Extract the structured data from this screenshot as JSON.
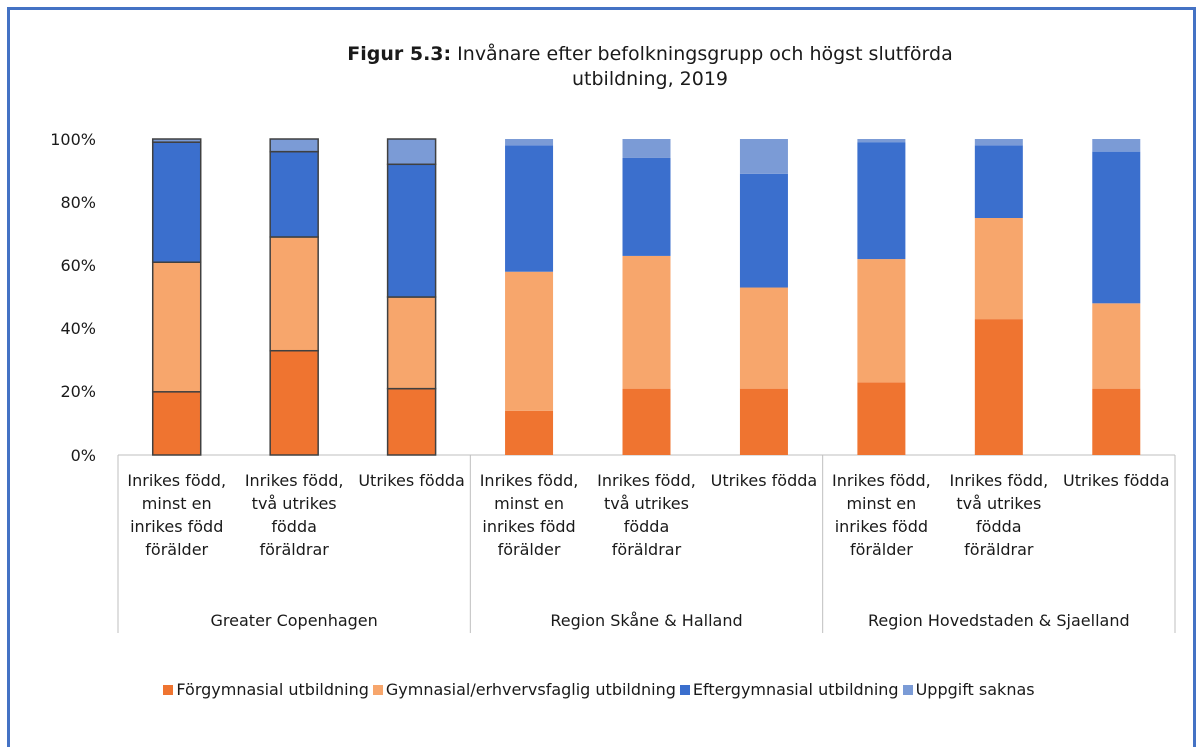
{
  "chart_data": {
    "type": "stacked_bar",
    "title_prefix": "Figur 5.3:",
    "title": "Invånare efter befolkningsgrupp och högst slutförda utbildning, 2019",
    "groups": [
      {
        "name": "Greater Copenhagen",
        "categories": [
          "Inrikes född, minst en inrikes född förälder",
          "Inrikes född, två utrikes födda föräldrar",
          "Utrikes födda"
        ]
      },
      {
        "name": "Region Skåne & Halland",
        "categories": [
          "Inrikes född, minst en inrikes född förälder",
          "Inrikes född, två utrikes födda föräldrar",
          "Utrikes födda"
        ]
      },
      {
        "name": "Region Hovedstaden & Sjaelland",
        "categories": [
          "Inrikes född, minst en inrikes född förälder",
          "Inrikes född, två utrikes födda föräldrar",
          "Utrikes födda"
        ]
      }
    ],
    "series": [
      {
        "name": "Förgymnasial utbildning",
        "color": "#ef7430",
        "values": [
          20,
          33,
          21,
          14,
          21,
          21,
          23,
          43,
          21
        ]
      },
      {
        "name": "Gymnasial/erhvervsfaglig utbildning",
        "color": "#f7a66c",
        "values": [
          41,
          36,
          29,
          44,
          42,
          32,
          39,
          32,
          27
        ]
      },
      {
        "name": "Eftergymnasial utbildning",
        "color": "#3b6fcd",
        "values": [
          38,
          27,
          42,
          40,
          31,
          36,
          37,
          23,
          48
        ]
      },
      {
        "name": "Uppgift saknas",
        "color": "#7b9bd6",
        "values": [
          1,
          4,
          8,
          2,
          6,
          11,
          1,
          2,
          4
        ]
      }
    ],
    "outline_color": "#404040",
    "outlined": [
      true,
      true,
      true,
      false,
      false,
      false,
      false,
      false,
      false
    ],
    "ylim": [
      0,
      100
    ],
    "yticks": [
      {
        "value": 0,
        "label": "0%"
      },
      {
        "value": 20,
        "label": "20%"
      },
      {
        "value": 40,
        "label": "40%"
      },
      {
        "value": 60,
        "label": "60%"
      },
      {
        "value": 80,
        "label": "80%"
      },
      {
        "value": 100,
        "label": "100%"
      }
    ],
    "legend": "bottom"
  }
}
